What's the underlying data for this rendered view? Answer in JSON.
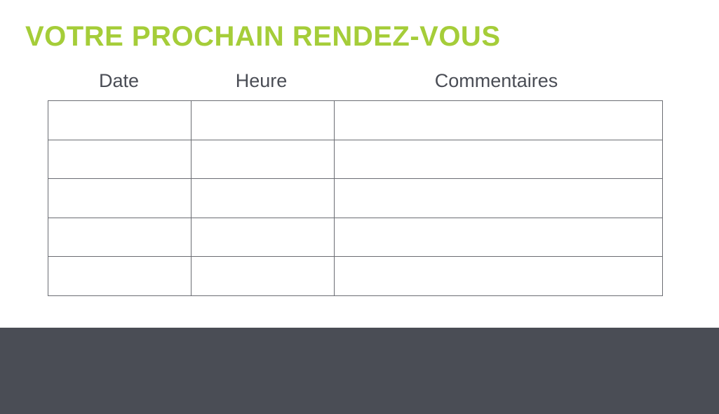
{
  "title": "VOTRE PROCHAIN RENDEZ-VOUS",
  "columns": [
    "Date",
    "Heure",
    "Commentaires"
  ],
  "rows": 5,
  "colors": {
    "accent": "#a5cd39",
    "text": "#4a4d55",
    "footer": "#4a4d55"
  }
}
